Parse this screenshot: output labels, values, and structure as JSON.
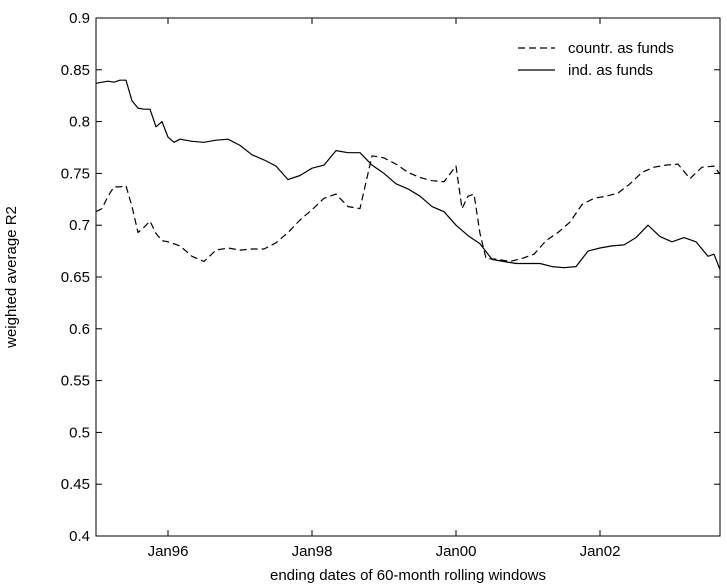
{
  "chart_data": {
    "type": "line",
    "xlabel": "ending dates of 60-month rolling windows",
    "ylabel": "weighted average R2",
    "xlim": [
      "1995-01",
      "2003-09"
    ],
    "ylim": [
      0.4,
      0.9
    ],
    "x_ticks": [
      {
        "date": "1996-01",
        "label": "Jan96"
      },
      {
        "date": "1998-01",
        "label": "Jan98"
      },
      {
        "date": "2000-01",
        "label": "Jan00"
      },
      {
        "date": "2002-01",
        "label": "Jan02"
      }
    ],
    "y_ticks": [
      {
        "value": 0.4,
        "label": "0.4"
      },
      {
        "value": 0.45,
        "label": "0.45"
      },
      {
        "value": 0.5,
        "label": "0.5"
      },
      {
        "value": 0.55,
        "label": "0.55"
      },
      {
        "value": 0.6,
        "label": "0.6"
      },
      {
        "value": 0.65,
        "label": "0.65"
      },
      {
        "value": 0.7,
        "label": "0.7"
      },
      {
        "value": 0.75,
        "label": "0.75"
      },
      {
        "value": 0.8,
        "label": "0.8"
      },
      {
        "value": 0.85,
        "label": "0.85"
      },
      {
        "value": 0.9,
        "label": "0.9"
      }
    ],
    "grid": false,
    "legend_position": "top-right",
    "series": [
      {
        "name": "countr. as funds",
        "style": "dashed",
        "color": "#000000",
        "x": [
          "1995-01",
          "1995-02",
          "1995-03",
          "1995-04",
          "1995-05",
          "1995-06",
          "1995-07",
          "1995-08",
          "1995-09",
          "1995-10",
          "1995-11",
          "1995-12",
          "1996-01",
          "1996-03",
          "1996-05",
          "1996-07",
          "1996-09",
          "1996-11",
          "1997-01",
          "1997-03",
          "1997-05",
          "1997-07",
          "1997-09",
          "1997-11",
          "1998-01",
          "1998-03",
          "1998-05",
          "1998-07",
          "1998-09",
          "1998-11",
          "1999-01",
          "1999-03",
          "1999-05",
          "1999-07",
          "1999-09",
          "1999-11",
          "2000-01",
          "2000-02",
          "2000-03",
          "2000-04",
          "2000-05",
          "2000-06",
          "2000-08",
          "2000-10",
          "2000-12",
          "2001-02",
          "2001-04",
          "2001-06",
          "2001-08",
          "2001-10",
          "2001-12",
          "2002-02",
          "2002-04",
          "2002-06",
          "2002-08",
          "2002-10",
          "2002-12",
          "2003-02",
          "2003-04",
          "2003-06",
          "2003-08",
          "2003-09"
        ],
        "y": [
          0.713,
          0.716,
          0.728,
          0.737,
          0.737,
          0.738,
          0.718,
          0.693,
          0.698,
          0.704,
          0.692,
          0.685,
          0.684,
          0.68,
          0.67,
          0.665,
          0.676,
          0.678,
          0.676,
          0.677,
          0.677,
          0.683,
          0.693,
          0.705,
          0.715,
          0.726,
          0.73,
          0.718,
          0.716,
          0.767,
          0.765,
          0.759,
          0.751,
          0.746,
          0.743,
          0.742,
          0.757,
          0.716,
          0.728,
          0.73,
          0.692,
          0.668,
          0.667,
          0.665,
          0.668,
          0.672,
          0.685,
          0.693,
          0.703,
          0.72,
          0.726,
          0.728,
          0.731,
          0.74,
          0.751,
          0.756,
          0.758,
          0.759,
          0.745,
          0.756,
          0.757,
          0.749
        ]
      },
      {
        "name": "ind. as funds",
        "style": "solid",
        "color": "#000000",
        "x": [
          "1995-01",
          "1995-02",
          "1995-03",
          "1995-04",
          "1995-05",
          "1995-06",
          "1995-07",
          "1995-08",
          "1995-09",
          "1995-10",
          "1995-11",
          "1995-12",
          "1996-01",
          "1996-02",
          "1996-03",
          "1996-05",
          "1996-07",
          "1996-09",
          "1996-11",
          "1997-01",
          "1997-03",
          "1997-05",
          "1997-07",
          "1997-09",
          "1997-11",
          "1998-01",
          "1998-03",
          "1998-05",
          "1998-07",
          "1998-09",
          "1998-11",
          "1999-01",
          "1999-03",
          "1999-05",
          "1999-07",
          "1999-09",
          "1999-11",
          "2000-01",
          "2000-03",
          "2000-05",
          "2000-07",
          "2000-09",
          "2000-11",
          "2001-01",
          "2001-03",
          "2001-05",
          "2001-07",
          "2001-09",
          "2001-11",
          "2002-01",
          "2002-03",
          "2002-05",
          "2002-07",
          "2002-09",
          "2002-11",
          "2003-01",
          "2003-03",
          "2003-05",
          "2003-07",
          "2003-08",
          "2003-09"
        ],
        "y": [
          0.837,
          0.838,
          0.839,
          0.838,
          0.84,
          0.84,
          0.82,
          0.813,
          0.812,
          0.812,
          0.795,
          0.8,
          0.785,
          0.78,
          0.783,
          0.781,
          0.78,
          0.782,
          0.783,
          0.777,
          0.768,
          0.763,
          0.757,
          0.744,
          0.748,
          0.755,
          0.758,
          0.772,
          0.77,
          0.77,
          0.758,
          0.75,
          0.74,
          0.735,
          0.728,
          0.718,
          0.713,
          0.7,
          0.69,
          0.682,
          0.667,
          0.665,
          0.663,
          0.663,
          0.663,
          0.66,
          0.659,
          0.66,
          0.675,
          0.678,
          0.68,
          0.681,
          0.688,
          0.7,
          0.689,
          0.684,
          0.688,
          0.684,
          0.67,
          0.672,
          0.657
        ]
      }
    ]
  }
}
